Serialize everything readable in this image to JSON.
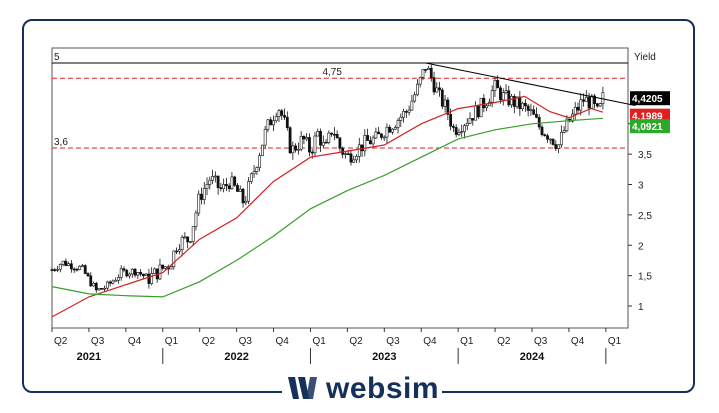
{
  "brand": {
    "name": "websim",
    "color": "#16305c"
  },
  "chart_data": {
    "type": "line",
    "style": "candlestick with moving averages",
    "yaxis_label": "Yield",
    "ylim": [
      0.7,
      5.1
    ],
    "yticks": [
      {
        "v": 1,
        "label": "1"
      },
      {
        "v": 1.5,
        "label": "1,5"
      },
      {
        "v": 2,
        "label": "2"
      },
      {
        "v": 2.5,
        "label": "2,5"
      },
      {
        "v": 3,
        "label": "3"
      },
      {
        "v": 3.5,
        "label": "3,5"
      },
      {
        "v": 4,
        "label": "4"
      }
    ],
    "xaxis": {
      "start": 2021.25,
      "end": 2025.15,
      "quarters": [
        {
          "t": 2021.25,
          "label": "Q2"
        },
        {
          "t": 2021.5,
          "label": "Q3"
        },
        {
          "t": 2021.75,
          "label": "Q4"
        },
        {
          "t": 2022.0,
          "label": "Q1"
        },
        {
          "t": 2022.25,
          "label": "Q2"
        },
        {
          "t": 2022.5,
          "label": "Q3"
        },
        {
          "t": 2022.75,
          "label": "Q4"
        },
        {
          "t": 2023.0,
          "label": "Q1"
        },
        {
          "t": 2023.25,
          "label": "Q2"
        },
        {
          "t": 2023.5,
          "label": "Q3"
        },
        {
          "t": 2023.75,
          "label": "Q4"
        },
        {
          "t": 2024.0,
          "label": "Q1"
        },
        {
          "t": 2024.25,
          "label": "Q2"
        },
        {
          "t": 2024.5,
          "label": "Q3"
        },
        {
          "t": 2024.75,
          "label": "Q4"
        },
        {
          "t": 2025.0,
          "label": "Q1"
        }
      ],
      "years": [
        {
          "t": 2021.5,
          "label": "2021"
        },
        {
          "t": 2022.5,
          "label": "2022"
        },
        {
          "t": 2023.5,
          "label": "2023"
        },
        {
          "t": 2024.5,
          "label": "2024"
        }
      ],
      "year_separators": [
        2022.0,
        2023.0,
        2024.0,
        2025.0
      ]
    },
    "reference_lines": [
      {
        "value": 5,
        "label": "5",
        "style": "solid",
        "color": "#000000"
      },
      {
        "value": 4.75,
        "label": "4,75",
        "style": "dashed",
        "color": "#e02020"
      },
      {
        "value": 3.6,
        "label": "3,6",
        "style": "dashed",
        "color": "#e02020"
      }
    ],
    "trendline": {
      "points": [
        [
          2023.78,
          5.0
        ],
        [
          2025.2,
          4.3
        ]
      ],
      "color": "#000000"
    },
    "price_anchors": [
      [
        2021.25,
        1.6
      ],
      [
        2021.32,
        1.72
      ],
      [
        2021.45,
        1.62
      ],
      [
        2021.55,
        1.25
      ],
      [
        2021.62,
        1.32
      ],
      [
        2021.72,
        1.55
      ],
      [
        2021.82,
        1.58
      ],
      [
        2021.9,
        1.45
      ],
      [
        2022.0,
        1.62
      ],
      [
        2022.05,
        1.7
      ],
      [
        2022.1,
        2.05
      ],
      [
        2022.18,
        2.1
      ],
      [
        2022.25,
        2.8
      ],
      [
        2022.32,
        3.1
      ],
      [
        2022.4,
        2.9
      ],
      [
        2022.45,
        3.05
      ],
      [
        2022.5,
        2.9
      ],
      [
        2022.55,
        2.7
      ],
      [
        2022.62,
        3.25
      ],
      [
        2022.7,
        3.9
      ],
      [
        2022.78,
        4.3
      ],
      [
        2022.82,
        4.05
      ],
      [
        2022.87,
        3.55
      ],
      [
        2022.95,
        3.75
      ],
      [
        2023.0,
        3.55
      ],
      [
        2023.05,
        3.85
      ],
      [
        2023.1,
        3.55
      ],
      [
        2023.15,
        3.95
      ],
      [
        2023.2,
        3.6
      ],
      [
        2023.25,
        3.45
      ],
      [
        2023.3,
        3.55
      ],
      [
        2023.38,
        3.7
      ],
      [
        2023.45,
        3.75
      ],
      [
        2023.5,
        3.9
      ],
      [
        2023.58,
        4.05
      ],
      [
        2023.65,
        4.2
      ],
      [
        2023.72,
        4.55
      ],
      [
        2023.78,
        4.95
      ],
      [
        2023.82,
        4.75
      ],
      [
        2023.87,
        4.45
      ],
      [
        2023.92,
        4.25
      ],
      [
        2023.97,
        3.9
      ],
      [
        2024.05,
        4.05
      ],
      [
        2024.12,
        4.2
      ],
      [
        2024.18,
        4.35
      ],
      [
        2024.25,
        4.6
      ],
      [
        2024.3,
        4.45
      ],
      [
        2024.38,
        4.35
      ],
      [
        2024.45,
        4.25
      ],
      [
        2024.5,
        4.15
      ],
      [
        2024.55,
        3.95
      ],
      [
        2024.62,
        3.8
      ],
      [
        2024.68,
        3.65
      ],
      [
        2024.72,
        3.9
      ],
      [
        2024.78,
        4.15
      ],
      [
        2024.85,
        4.4
      ],
      [
        2024.9,
        4.35
      ],
      [
        2024.95,
        4.15
      ],
      [
        2024.98,
        4.42
      ]
    ],
    "series": [
      {
        "name": "",
        "color": "#d42020",
        "values": [
          [
            2021.25,
            0.82
          ],
          [
            2021.5,
            1.15
          ],
          [
            2021.75,
            1.35
          ],
          [
            2022.0,
            1.55
          ],
          [
            2022.25,
            2.1
          ],
          [
            2022.5,
            2.45
          ],
          [
            2022.75,
            3.05
          ],
          [
            2023.0,
            3.45
          ],
          [
            2023.25,
            3.55
          ],
          [
            2023.5,
            3.65
          ],
          [
            2023.75,
            4.0
          ],
          [
            2024.0,
            4.25
          ],
          [
            2024.25,
            4.35
          ],
          [
            2024.45,
            4.45
          ],
          [
            2024.62,
            4.2
          ],
          [
            2024.75,
            4.1
          ],
          [
            2024.9,
            4.25
          ],
          [
            2024.98,
            4.19
          ]
        ]
      },
      {
        "name": "",
        "color": "#3a9e2a",
        "values": [
          [
            2021.25,
            1.32
          ],
          [
            2021.5,
            1.2
          ],
          [
            2021.75,
            1.17
          ],
          [
            2022.0,
            1.15
          ],
          [
            2022.25,
            1.4
          ],
          [
            2022.5,
            1.75
          ],
          [
            2022.75,
            2.15
          ],
          [
            2023.0,
            2.6
          ],
          [
            2023.25,
            2.9
          ],
          [
            2023.5,
            3.15
          ],
          [
            2023.75,
            3.45
          ],
          [
            2024.0,
            3.75
          ],
          [
            2024.25,
            3.9
          ],
          [
            2024.5,
            4.0
          ],
          [
            2024.75,
            4.05
          ],
          [
            2024.98,
            4.09
          ]
        ]
      }
    ],
    "last_values": [
      {
        "label": "4,4205",
        "value": 4.4205,
        "bg": "#000000"
      },
      {
        "label": "4,1989",
        "value": 4.1989,
        "bg": "#e02020"
      },
      {
        "label": "4,0921",
        "value": 4.0921,
        "bg": "#2ea82a"
      }
    ]
  }
}
